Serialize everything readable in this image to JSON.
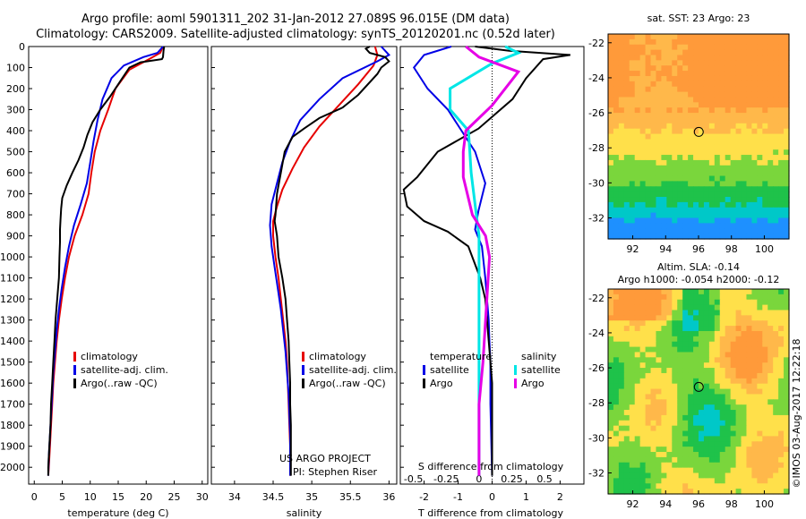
{
  "titles": {
    "line1": "Argo profile: aoml 5901311_202 31-Jan-2012 27.089S 96.015E (DM data)",
    "line2": "Climatology: CARS2009. Satellite-adjusted climatology: synTS_20120201.nc (0.52d later)"
  },
  "colors": {
    "climatology": "#e60000",
    "satellite": "#0000e6",
    "argo": "#000000",
    "sal_satellite": "#00e6e6",
    "sal_argo": "#e600e6"
  },
  "chart_data": [
    {
      "type": "line",
      "id": "temperature",
      "xlabel": "temperature (deg C)",
      "xlim": [
        -1,
        31
      ],
      "ylim": [
        2080,
        0
      ],
      "xticks": [
        "0",
        "5",
        "10",
        "15",
        "20",
        "25",
        "30"
      ],
      "yticks": [
        "0",
        "100",
        "200",
        "300",
        "400",
        "500",
        "600",
        "700",
        "800",
        "900",
        "1000",
        "1100",
        "1200",
        "1300",
        "1400",
        "1500",
        "1600",
        "1700",
        "1800",
        "1900",
        "2000"
      ],
      "grid": false,
      "legend": {
        "position": "lower-center",
        "entries": [
          "climatology",
          "satellite-adj. clim.",
          "Argo(..raw -QC)"
        ]
      },
      "series": [
        {
          "name": "climatology",
          "color": "#e60000",
          "points": [
            [
              23.0,
              0
            ],
            [
              22.5,
              30
            ],
            [
              20.5,
              60
            ],
            [
              17,
              110
            ],
            [
              14.5,
              200
            ],
            [
              13.2,
              300
            ],
            [
              11.8,
              400
            ],
            [
              10.8,
              500
            ],
            [
              10.2,
              600
            ],
            [
              9.7,
              700
            ],
            [
              8.6,
              800
            ],
            [
              7.2,
              900
            ],
            [
              6.2,
              1000
            ],
            [
              5.5,
              1100
            ],
            [
              4.9,
              1200
            ],
            [
              4.4,
              1300
            ],
            [
              4.0,
              1400
            ],
            [
              3.7,
              1500
            ],
            [
              3.4,
              1600
            ],
            [
              3.2,
              1700
            ],
            [
              3.0,
              1800
            ],
            [
              2.8,
              1900
            ],
            [
              2.6,
              2000
            ],
            [
              2.5,
              2040
            ]
          ]
        },
        {
          "name": "satellite-adj. clim.",
          "color": "#0000e6",
          "points": [
            [
              23.0,
              0
            ],
            [
              22.0,
              30
            ],
            [
              19.5,
              50
            ],
            [
              16,
              90
            ],
            [
              13.8,
              150
            ],
            [
              12.2,
              250
            ],
            [
              11.3,
              350
            ],
            [
              10.6,
              450
            ],
            [
              10.0,
              550
            ],
            [
              9.4,
              650
            ],
            [
              8.3,
              750
            ],
            [
              7.1,
              850
            ],
            [
              6.2,
              950
            ],
            [
              5.5,
              1050
            ],
            [
              4.9,
              1150
            ],
            [
              4.4,
              1250
            ],
            [
              4.0,
              1350
            ],
            [
              3.7,
              1450
            ],
            [
              3.4,
              1550
            ],
            [
              3.2,
              1650
            ],
            [
              3.0,
              1750
            ],
            [
              2.8,
              1850
            ],
            [
              2.6,
              1950
            ],
            [
              2.5,
              2040
            ]
          ]
        },
        {
          "name": "Argo(..raw -QC)",
          "color": "#000000",
          "points": [
            [
              23.2,
              0
            ],
            [
              23.1,
              20
            ],
            [
              23.0,
              50
            ],
            [
              22.8,
              60
            ],
            [
              19,
              75
            ],
            [
              17,
              100
            ],
            [
              15.5,
              160
            ],
            [
              13.5,
              240
            ],
            [
              11.8,
              300
            ],
            [
              10.4,
              360
            ],
            [
              9.5,
              420
            ],
            [
              8.8,
              480
            ],
            [
              7.9,
              540
            ],
            [
              6.8,
              600
            ],
            [
              5.8,
              660
            ],
            [
              5.0,
              720
            ],
            [
              4.8,
              770
            ],
            [
              4.7,
              820
            ],
            [
              4.6,
              870
            ],
            [
              4.6,
              930
            ],
            [
              4.5,
              1000
            ],
            [
              4.4,
              1100
            ],
            [
              4.1,
              1200
            ],
            [
              3.8,
              1300
            ],
            [
              3.6,
              1400
            ],
            [
              3.4,
              1500
            ],
            [
              3.2,
              1600
            ],
            [
              3.0,
              1700
            ],
            [
              2.9,
              1800
            ],
            [
              2.7,
              1900
            ],
            [
              2.5,
              2000
            ],
            [
              2.5,
              2040
            ]
          ]
        }
      ]
    },
    {
      "type": "line",
      "id": "salinity",
      "xlabel": "salinity",
      "xlim": [
        33.7,
        36.1
      ],
      "ylim": [
        2080,
        0
      ],
      "xticks": [
        "34",
        "34.5",
        "35",
        "35.5",
        "36"
      ],
      "grid": false,
      "legend": {
        "position": "lower-center",
        "entries": [
          "climatology",
          "satellite-adj. clim.",
          "Argo(..raw -QC)"
        ]
      },
      "annotation": [
        "US ARGO PROJECT",
        "PI: Stephen Riser"
      ],
      "series": [
        {
          "name": "climatology",
          "color": "#e60000",
          "points": [
            [
              35.82,
              0
            ],
            [
              35.85,
              40
            ],
            [
              35.8,
              90
            ],
            [
              35.6,
              180
            ],
            [
              35.35,
              280
            ],
            [
              35.1,
              380
            ],
            [
              34.9,
              480
            ],
            [
              34.75,
              580
            ],
            [
              34.62,
              680
            ],
            [
              34.55,
              760
            ],
            [
              34.5,
              830
            ],
            [
              34.5,
              900
            ],
            [
              34.53,
              1000
            ],
            [
              34.57,
              1100
            ],
            [
              34.6,
              1200
            ],
            [
              34.63,
              1300
            ],
            [
              34.66,
              1400
            ],
            [
              34.68,
              1500
            ],
            [
              34.69,
              1600
            ],
            [
              34.7,
              1700
            ],
            [
              34.71,
              1800
            ],
            [
              34.72,
              1900
            ],
            [
              34.72,
              2000
            ],
            [
              34.72,
              2040
            ]
          ]
        },
        {
          "name": "satellite-adj. clim.",
          "color": "#0000e6",
          "points": [
            [
              35.9,
              0
            ],
            [
              36.0,
              40
            ],
            [
              35.85,
              70
            ],
            [
              35.4,
              150
            ],
            [
              35.1,
              250
            ],
            [
              34.85,
              350
            ],
            [
              34.72,
              450
            ],
            [
              34.62,
              550
            ],
            [
              34.55,
              650
            ],
            [
              34.48,
              750
            ],
            [
              34.46,
              850
            ],
            [
              34.48,
              950
            ],
            [
              34.52,
              1050
            ],
            [
              34.56,
              1150
            ],
            [
              34.6,
              1250
            ],
            [
              34.63,
              1350
            ],
            [
              34.66,
              1450
            ],
            [
              34.68,
              1550
            ],
            [
              34.7,
              1650
            ],
            [
              34.71,
              1750
            ],
            [
              34.72,
              1850
            ],
            [
              34.72,
              1950
            ],
            [
              34.72,
              2040
            ]
          ]
        },
        {
          "name": "Argo(..raw -QC)",
          "color": "#000000",
          "points": [
            [
              35.75,
              0
            ],
            [
              35.7,
              10
            ],
            [
              35.75,
              30
            ],
            [
              35.95,
              50
            ],
            [
              36.0,
              70
            ],
            [
              35.9,
              100
            ],
            [
              35.85,
              130
            ],
            [
              35.6,
              230
            ],
            [
              35.4,
              290
            ],
            [
              35.1,
              340
            ],
            [
              34.9,
              390
            ],
            [
              34.75,
              430
            ],
            [
              34.65,
              500
            ],
            [
              34.6,
              600
            ],
            [
              34.55,
              700
            ],
            [
              34.53,
              800
            ],
            [
              34.52,
              830
            ],
            [
              34.55,
              900
            ],
            [
              34.57,
              1000
            ],
            [
              34.62,
              1100
            ],
            [
              34.66,
              1200
            ],
            [
              34.68,
              1300
            ],
            [
              34.7,
              1400
            ],
            [
              34.71,
              1500
            ],
            [
              34.72,
              1600
            ],
            [
              34.72,
              1700
            ],
            [
              34.73,
              1800
            ],
            [
              34.73,
              1900
            ],
            [
              34.73,
              2000
            ],
            [
              34.73,
              2040
            ]
          ]
        }
      ]
    },
    {
      "type": "line",
      "id": "difference",
      "xlabel": "T difference from climatology",
      "xlabel_top": "S difference from climatology",
      "xlim": [
        -2.7,
        2.7
      ],
      "s_xlim": [
        -0.6,
        0.8
      ],
      "ylim": [
        2080,
        0
      ],
      "xticks": [
        "-2",
        "-1",
        "0",
        "1",
        "2"
      ],
      "s_xticks": [
        "-0.5",
        "-0.25",
        "0",
        "0.25",
        "0.5"
      ],
      "zero_line": "dotted",
      "legend": {
        "position": "lower-center",
        "headers": [
          "temperature",
          "salinity"
        ],
        "entries": [
          "satellite",
          "Argo",
          "satellite",
          "Argo"
        ]
      },
      "series": [
        {
          "name": "temperature satellite",
          "color": "#0000e6",
          "axis": "T",
          "points": [
            [
              -1.2,
              0
            ],
            [
              -2.0,
              40
            ],
            [
              -2.3,
              100
            ],
            [
              -1.9,
              200
            ],
            [
              -1.3,
              300
            ],
            [
              -0.5,
              500
            ],
            [
              -0.2,
              650
            ],
            [
              -0.4,
              780
            ],
            [
              -0.5,
              870
            ],
            [
              -0.3,
              950
            ],
            [
              -0.2,
              1100
            ],
            [
              -0.15,
              1200
            ],
            [
              -0.1,
              1300
            ],
            [
              -0.08,
              1400
            ],
            [
              -0.05,
              1500
            ],
            [
              -0.05,
              1700
            ],
            [
              0.0,
              2040
            ]
          ]
        },
        {
          "name": "temperature Argo",
          "color": "#000000",
          "points": [
            [
              -0.5,
              0
            ],
            [
              0.5,
              20
            ],
            [
              2.3,
              40
            ],
            [
              1.5,
              60
            ],
            [
              1.0,
              150
            ],
            [
              0.6,
              250
            ],
            [
              -0.4,
              390
            ],
            [
              -1.6,
              500
            ],
            [
              -2.2,
              620
            ],
            [
              -2.6,
              680
            ],
            [
              -2.5,
              760
            ],
            [
              -2.0,
              830
            ],
            [
              -1.3,
              880
            ],
            [
              -0.7,
              950
            ],
            [
              -0.35,
              1100
            ],
            [
              -0.2,
              1200
            ],
            [
              -0.1,
              1400
            ],
            [
              0.0,
              1600
            ],
            [
              0.0,
              2040
            ]
          ]
        },
        {
          "name": "salinity satellite",
          "color": "#00e6e6",
          "axis": "S",
          "points": [
            [
              0.2,
              0
            ],
            [
              0.3,
              30
            ],
            [
              0.1,
              80
            ],
            [
              -0.22,
              200
            ],
            [
              -0.22,
              300
            ],
            [
              -0.08,
              400
            ],
            [
              -0.06,
              600
            ],
            [
              -0.02,
              800
            ],
            [
              0.0,
              900
            ],
            [
              0.0,
              2040
            ]
          ]
        },
        {
          "name": "salinity Argo",
          "color": "#e600e6",
          "axis": "S",
          "points": [
            [
              -0.1,
              0
            ],
            [
              0.0,
              50
            ],
            [
              0.3,
              120
            ],
            [
              0.1,
              280
            ],
            [
              -0.1,
              400
            ],
            [
              -0.12,
              500
            ],
            [
              -0.12,
              620
            ],
            [
              -0.05,
              800
            ],
            [
              0.05,
              900
            ],
            [
              0.08,
              1000
            ],
            [
              0.07,
              1100
            ],
            [
              0.05,
              1300
            ],
            [
              0.03,
              1500
            ],
            [
              0.0,
              1700
            ],
            [
              0.0,
              2040
            ]
          ]
        }
      ]
    },
    {
      "type": "heatmap",
      "id": "sst",
      "title": "sat. SST: 23 Argo: 23",
      "xlim": [
        90.5,
        101.5
      ],
      "ylim": [
        -33.2,
        -21.5
      ],
      "xticks": [
        "92",
        "94",
        "96",
        "98",
        "100"
      ],
      "yticks": [
        "-22",
        "-24",
        "-26",
        "-28",
        "-30",
        "-32"
      ],
      "marker": {
        "lon": 96.015,
        "lat": -27.089
      }
    },
    {
      "type": "heatmap",
      "id": "sla",
      "title": "Altim. SLA: -0.14",
      "subtitle": "Argo h1000: -0.054 h2000: -0.12",
      "xlim": [
        90.5,
        101.5
      ],
      "ylim": [
        -33.2,
        -21.5
      ],
      "xticks": [
        "92",
        "94",
        "96",
        "98",
        "100"
      ],
      "yticks": [
        "-22",
        "-24",
        "-26",
        "-28",
        "-30",
        "-32"
      ],
      "marker": {
        "lon": 96.015,
        "lat": -27.089
      }
    }
  ],
  "credit": "©IMOS 03-Aug-2017 12:22:18"
}
